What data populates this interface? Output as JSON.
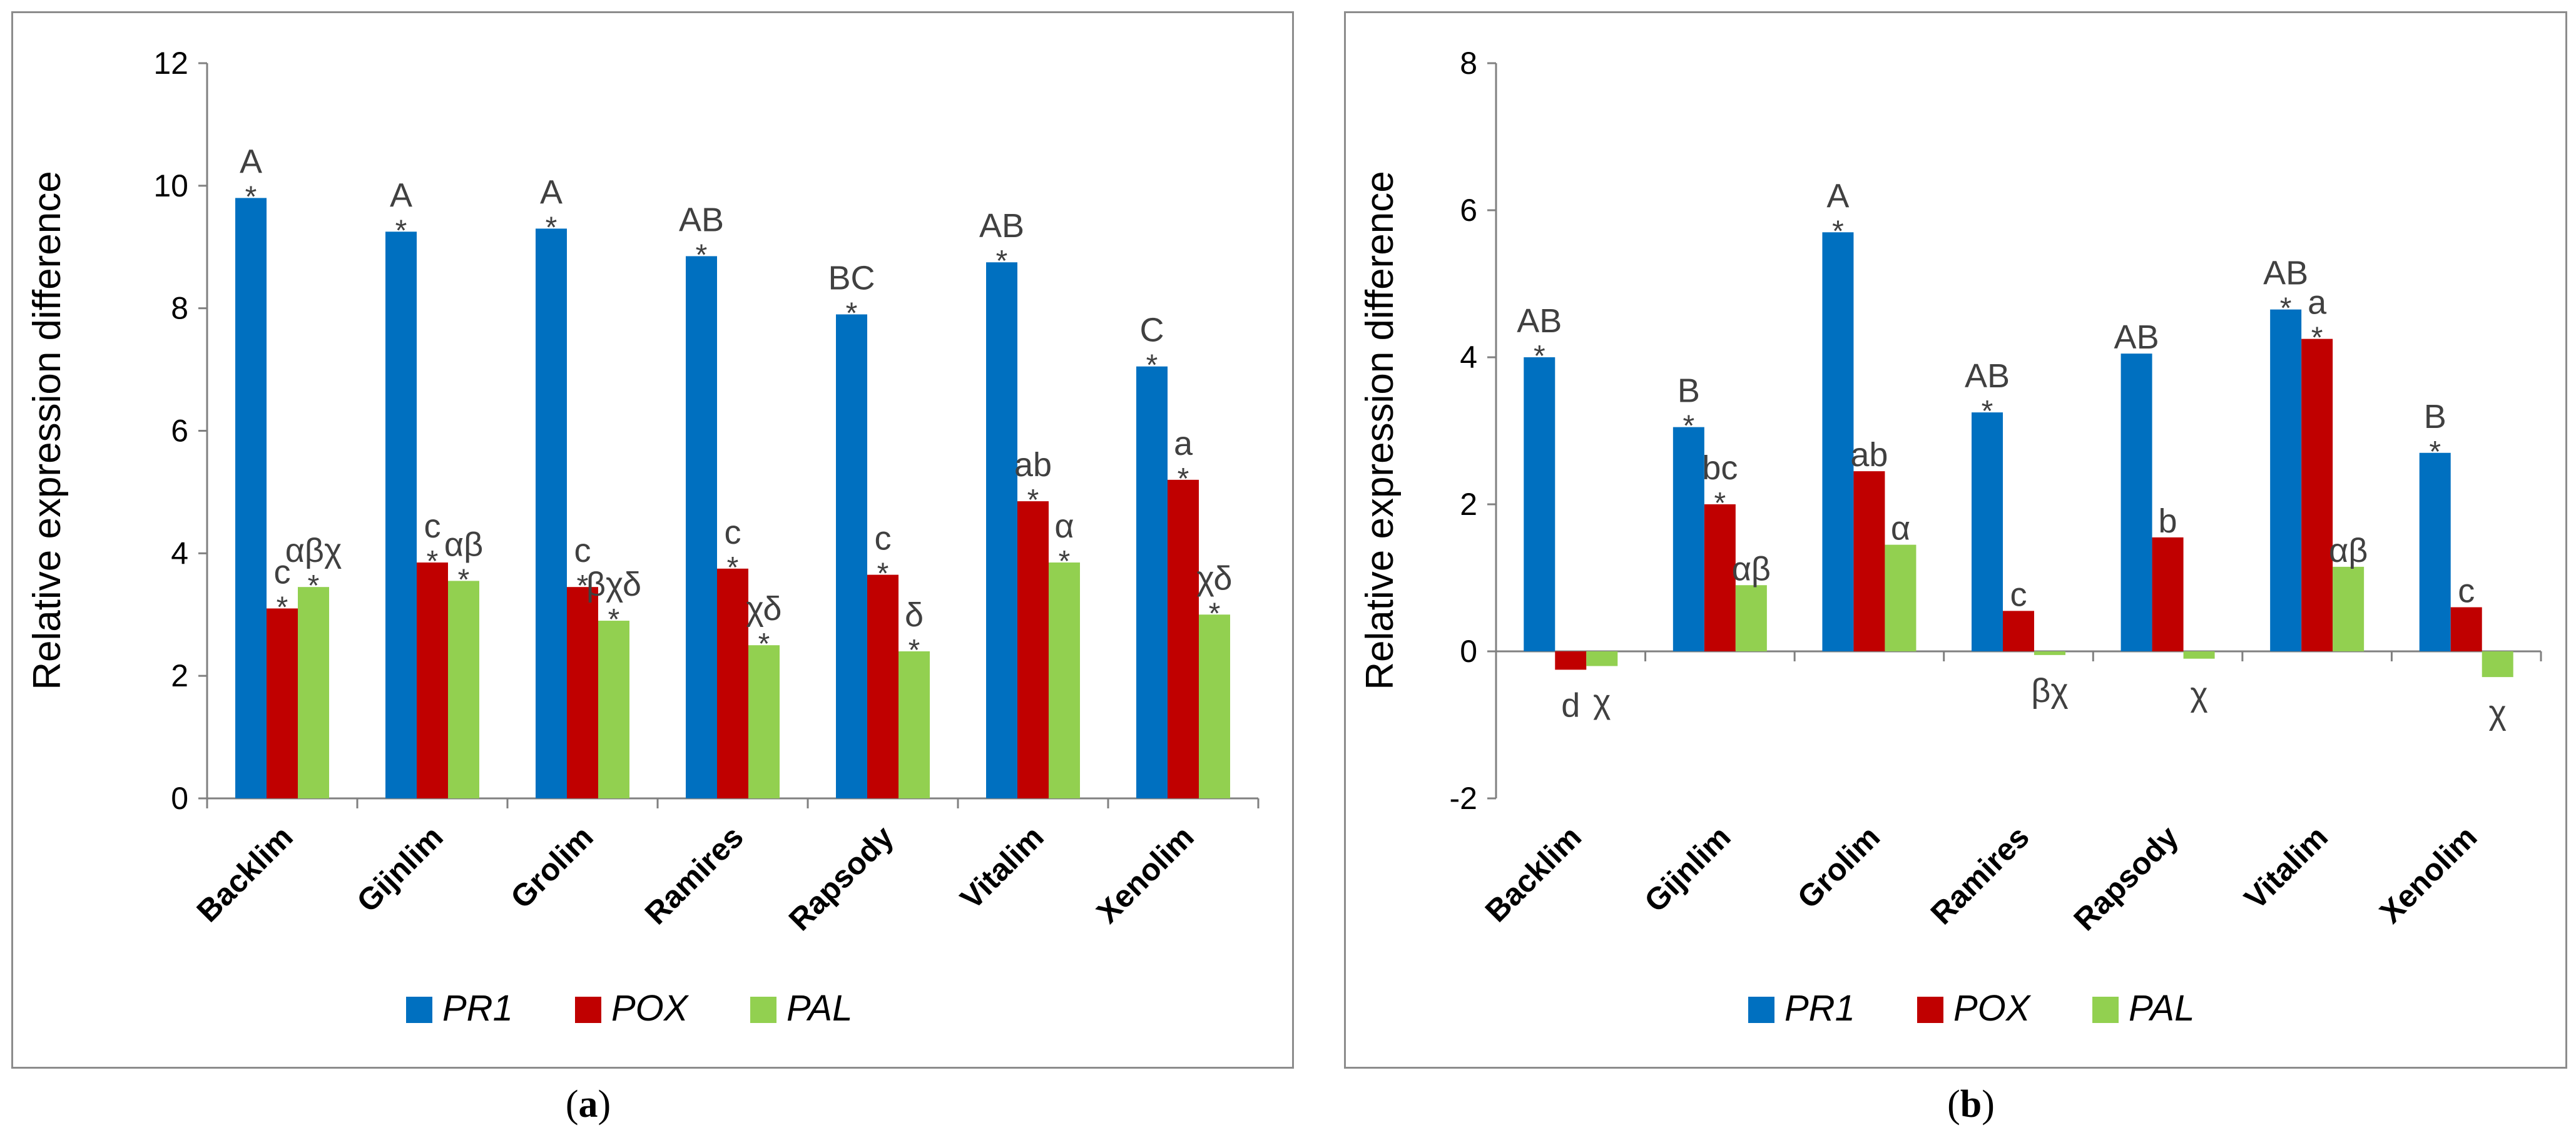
{
  "colors": {
    "PR1": "#0070C0",
    "POX": "#C00000",
    "PAL": "#92D050",
    "axis": "#808080",
    "text": "#000000",
    "annot": "#404040"
  },
  "captions": {
    "a_letter": "a",
    "b_letter": "b"
  },
  "chart_data": [
    {
      "type": "bar",
      "panel": "a",
      "ylabel": "Relative expression difference",
      "xlabel": "",
      "ylim": [
        0,
        12
      ],
      "yticks": [
        0,
        2,
        4,
        6,
        8,
        10,
        12
      ],
      "grid": false,
      "legend_position": "bottom",
      "categories": [
        "Backlim",
        "Gijnlim",
        "Grolim",
        "Ramires",
        "Rapsody",
        "Vitalim",
        "Xenolim"
      ],
      "series": [
        {
          "name": "PR1",
          "values": [
            9.8,
            9.25,
            9.3,
            8.85,
            7.9,
            8.75,
            7.05
          ],
          "stars": [
            "*",
            "*",
            "*",
            "*",
            "*",
            "*",
            "*"
          ],
          "letters": [
            "A",
            "A",
            "A",
            "AB",
            "BC",
            "AB",
            "C"
          ]
        },
        {
          "name": "POX",
          "values": [
            3.1,
            3.85,
            3.45,
            3.75,
            3.65,
            4.85,
            5.2
          ],
          "stars": [
            "*",
            "*",
            "*",
            "*",
            "*",
            "*",
            "*"
          ],
          "letters": [
            "c",
            "c",
            "c",
            "c",
            "c",
            "ab",
            "a"
          ]
        },
        {
          "name": "PAL",
          "values": [
            3.45,
            3.55,
            2.9,
            2.5,
            2.4,
            3.85,
            3.0
          ],
          "stars": [
            "*",
            "*",
            "*",
            "*",
            "*",
            "*",
            "*"
          ],
          "letters": [
            "αβχ",
            "αβ",
            "βχδ",
            "χδ",
            "δ",
            "α",
            "χδ"
          ]
        }
      ]
    },
    {
      "type": "bar",
      "panel": "b",
      "ylabel": "Relative expression difference",
      "xlabel": "",
      "ylim": [
        -2,
        8
      ],
      "yticks": [
        -2,
        0,
        2,
        4,
        6,
        8
      ],
      "grid": false,
      "legend_position": "bottom",
      "categories": [
        "Backlim",
        "Gijnlim",
        "Grolim",
        "Ramires",
        "Rapsody",
        "Vitalim",
        "Xenolim"
      ],
      "series": [
        {
          "name": "PR1",
          "values": [
            4.0,
            3.05,
            5.7,
            3.25,
            4.05,
            4.65,
            2.7
          ],
          "stars": [
            "*",
            "*",
            "*",
            "*",
            "",
            "*",
            "*"
          ],
          "letters": [
            "AB",
            "B",
            "A",
            "AB",
            "AB",
            "AB",
            "B"
          ]
        },
        {
          "name": "POX",
          "values": [
            -0.25,
            2.0,
            2.45,
            0.55,
            1.55,
            4.25,
            0.6
          ],
          "stars": [
            "",
            "*",
            "",
            "",
            "",
            "*",
            ""
          ],
          "letters": [
            "d",
            "bc",
            "ab",
            "c",
            "b",
            "a",
            "c"
          ]
        },
        {
          "name": "PAL",
          "values": [
            -0.2,
            0.9,
            1.45,
            -0.05,
            -0.1,
            1.15,
            -0.35
          ],
          "stars": [
            "",
            "",
            "",
            "",
            "",
            "",
            ""
          ],
          "letters": [
            "χ",
            "αβ",
            "α",
            "βχ",
            "χ",
            "αβ",
            "χ"
          ]
        }
      ]
    }
  ]
}
